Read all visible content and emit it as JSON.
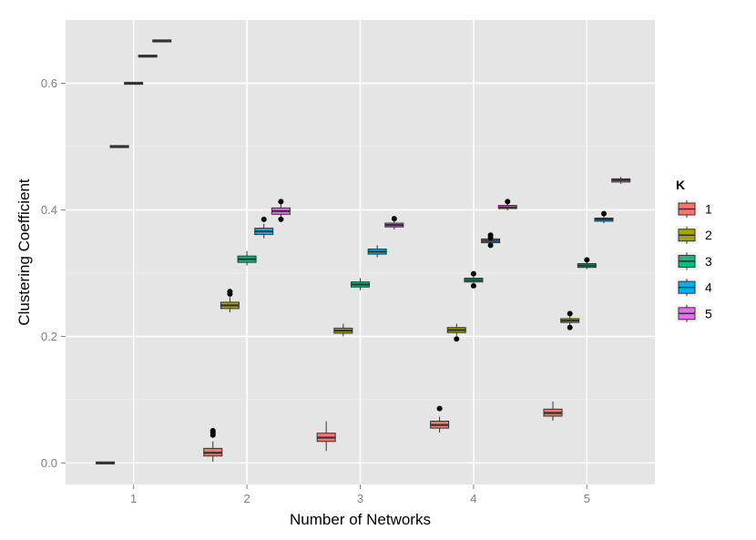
{
  "chart_data": {
    "type": "boxplot",
    "xlabel": "Number of Networks",
    "ylabel": "Clustering Coefficient",
    "x_ticks": [
      "1",
      "2",
      "3",
      "4",
      "5"
    ],
    "y_ticks": [
      "0.0",
      "0.2",
      "0.4",
      "0.6"
    ],
    "y_tick_values": [
      0.0,
      0.2,
      0.4,
      0.6
    ],
    "xlim": [
      0.4,
      5.6
    ],
    "ylim": [
      -0.034,
      0.7
    ],
    "grid": true,
    "background": "#e5e5e5",
    "legend_title": "K",
    "legend_position": "right",
    "series": [
      {
        "name": "1",
        "color": "#F8766D"
      },
      {
        "name": "2",
        "color": "#A3A500"
      },
      {
        "name": "3",
        "color": "#00BF7D"
      },
      {
        "name": "4",
        "color": "#00B0F6"
      },
      {
        "name": "5",
        "color": "#E76BF3"
      }
    ],
    "boxes": [
      {
        "x": 0.75,
        "series": 0,
        "min": 0.0,
        "q1": 0.0,
        "median": 0.0,
        "q3": 0.0,
        "max": 0.0,
        "outliers": []
      },
      {
        "x": 0.875,
        "series": 0,
        "min": 0.5,
        "q1": 0.5,
        "median": 0.5,
        "q3": 0.5,
        "max": 0.5,
        "outliers": []
      },
      {
        "x": 1.0,
        "series": 0,
        "min": 0.6,
        "q1": 0.6,
        "median": 0.6,
        "q3": 0.6,
        "max": 0.6,
        "outliers": []
      },
      {
        "x": 1.125,
        "series": 0,
        "min": 0.643,
        "q1": 0.643,
        "median": 0.643,
        "q3": 0.643,
        "max": 0.643,
        "outliers": []
      },
      {
        "x": 1.25,
        "series": 0,
        "min": 0.667,
        "q1": 0.667,
        "median": 0.667,
        "q3": 0.667,
        "max": 0.667,
        "outliers": []
      },
      {
        "x": 1.7,
        "series": 0,
        "min": 0.002,
        "q1": 0.011,
        "median": 0.016,
        "q3": 0.023,
        "max": 0.034,
        "outliers": [
          0.044,
          0.048,
          0.051
        ]
      },
      {
        "x": 1.85,
        "series": 1,
        "min": 0.238,
        "q1": 0.244,
        "median": 0.249,
        "q3": 0.254,
        "max": 0.262,
        "outliers": [
          0.267,
          0.271
        ]
      },
      {
        "x": 2.0,
        "series": 2,
        "min": 0.312,
        "q1": 0.317,
        "median": 0.322,
        "q3": 0.327,
        "max": 0.335,
        "outliers": []
      },
      {
        "x": 2.15,
        "series": 3,
        "min": 0.355,
        "q1": 0.361,
        "median": 0.366,
        "q3": 0.371,
        "max": 0.378,
        "outliers": [
          0.385
        ]
      },
      {
        "x": 2.3,
        "series": 4,
        "min": 0.388,
        "q1": 0.393,
        "median": 0.398,
        "q3": 0.403,
        "max": 0.41,
        "outliers": [
          0.385,
          0.413
        ]
      },
      {
        "x": 2.7,
        "series": 0,
        "min": 0.019,
        "q1": 0.034,
        "median": 0.04,
        "q3": 0.047,
        "max": 0.066,
        "outliers": []
      },
      {
        "x": 2.85,
        "series": 1,
        "min": 0.2,
        "q1": 0.205,
        "median": 0.209,
        "q3": 0.213,
        "max": 0.22,
        "outliers": []
      },
      {
        "x": 3.0,
        "series": 2,
        "min": 0.273,
        "q1": 0.278,
        "median": 0.282,
        "q3": 0.286,
        "max": 0.292,
        "outliers": []
      },
      {
        "x": 3.15,
        "series": 3,
        "min": 0.325,
        "q1": 0.33,
        "median": 0.334,
        "q3": 0.338,
        "max": 0.344,
        "outliers": []
      },
      {
        "x": 3.3,
        "series": 4,
        "min": 0.369,
        "q1": 0.373,
        "median": 0.376,
        "q3": 0.379,
        "max": 0.383,
        "outliers": [
          0.386
        ]
      },
      {
        "x": 3.7,
        "series": 0,
        "min": 0.048,
        "q1": 0.055,
        "median": 0.06,
        "q3": 0.066,
        "max": 0.073,
        "outliers": [
          0.086
        ]
      },
      {
        "x": 3.85,
        "series": 1,
        "min": 0.201,
        "q1": 0.206,
        "median": 0.21,
        "q3": 0.214,
        "max": 0.22,
        "outliers": [
          0.196
        ]
      },
      {
        "x": 4.0,
        "series": 2,
        "min": 0.283,
        "q1": 0.286,
        "median": 0.289,
        "q3": 0.292,
        "max": 0.296,
        "outliers": [
          0.28,
          0.299
        ]
      },
      {
        "x": 4.15,
        "series": 3,
        "min": 0.345,
        "q1": 0.348,
        "median": 0.351,
        "q3": 0.354,
        "max": 0.357,
        "outliers": [
          0.344,
          0.356,
          0.36
        ]
      },
      {
        "x": 4.3,
        "series": 4,
        "min": 0.399,
        "q1": 0.402,
        "median": 0.404,
        "q3": 0.407,
        "max": 0.41,
        "outliers": [
          0.413
        ]
      },
      {
        "x": 4.7,
        "series": 0,
        "min": 0.067,
        "q1": 0.074,
        "median": 0.079,
        "q3": 0.085,
        "max": 0.097,
        "outliers": []
      },
      {
        "x": 4.85,
        "series": 1,
        "min": 0.218,
        "q1": 0.222,
        "median": 0.225,
        "q3": 0.228,
        "max": 0.232,
        "outliers": [
          0.214,
          0.236
        ]
      },
      {
        "x": 5.0,
        "series": 2,
        "min": 0.306,
        "q1": 0.309,
        "median": 0.312,
        "q3": 0.315,
        "max": 0.318,
        "outliers": [
          0.321
        ]
      },
      {
        "x": 5.15,
        "series": 3,
        "min": 0.379,
        "q1": 0.382,
        "median": 0.385,
        "q3": 0.387,
        "max": 0.39,
        "outliers": [
          0.394
        ]
      },
      {
        "x": 5.3,
        "series": 4,
        "min": 0.441,
        "q1": 0.444,
        "median": 0.447,
        "q3": 0.449,
        "max": 0.452,
        "outliers": []
      }
    ]
  }
}
